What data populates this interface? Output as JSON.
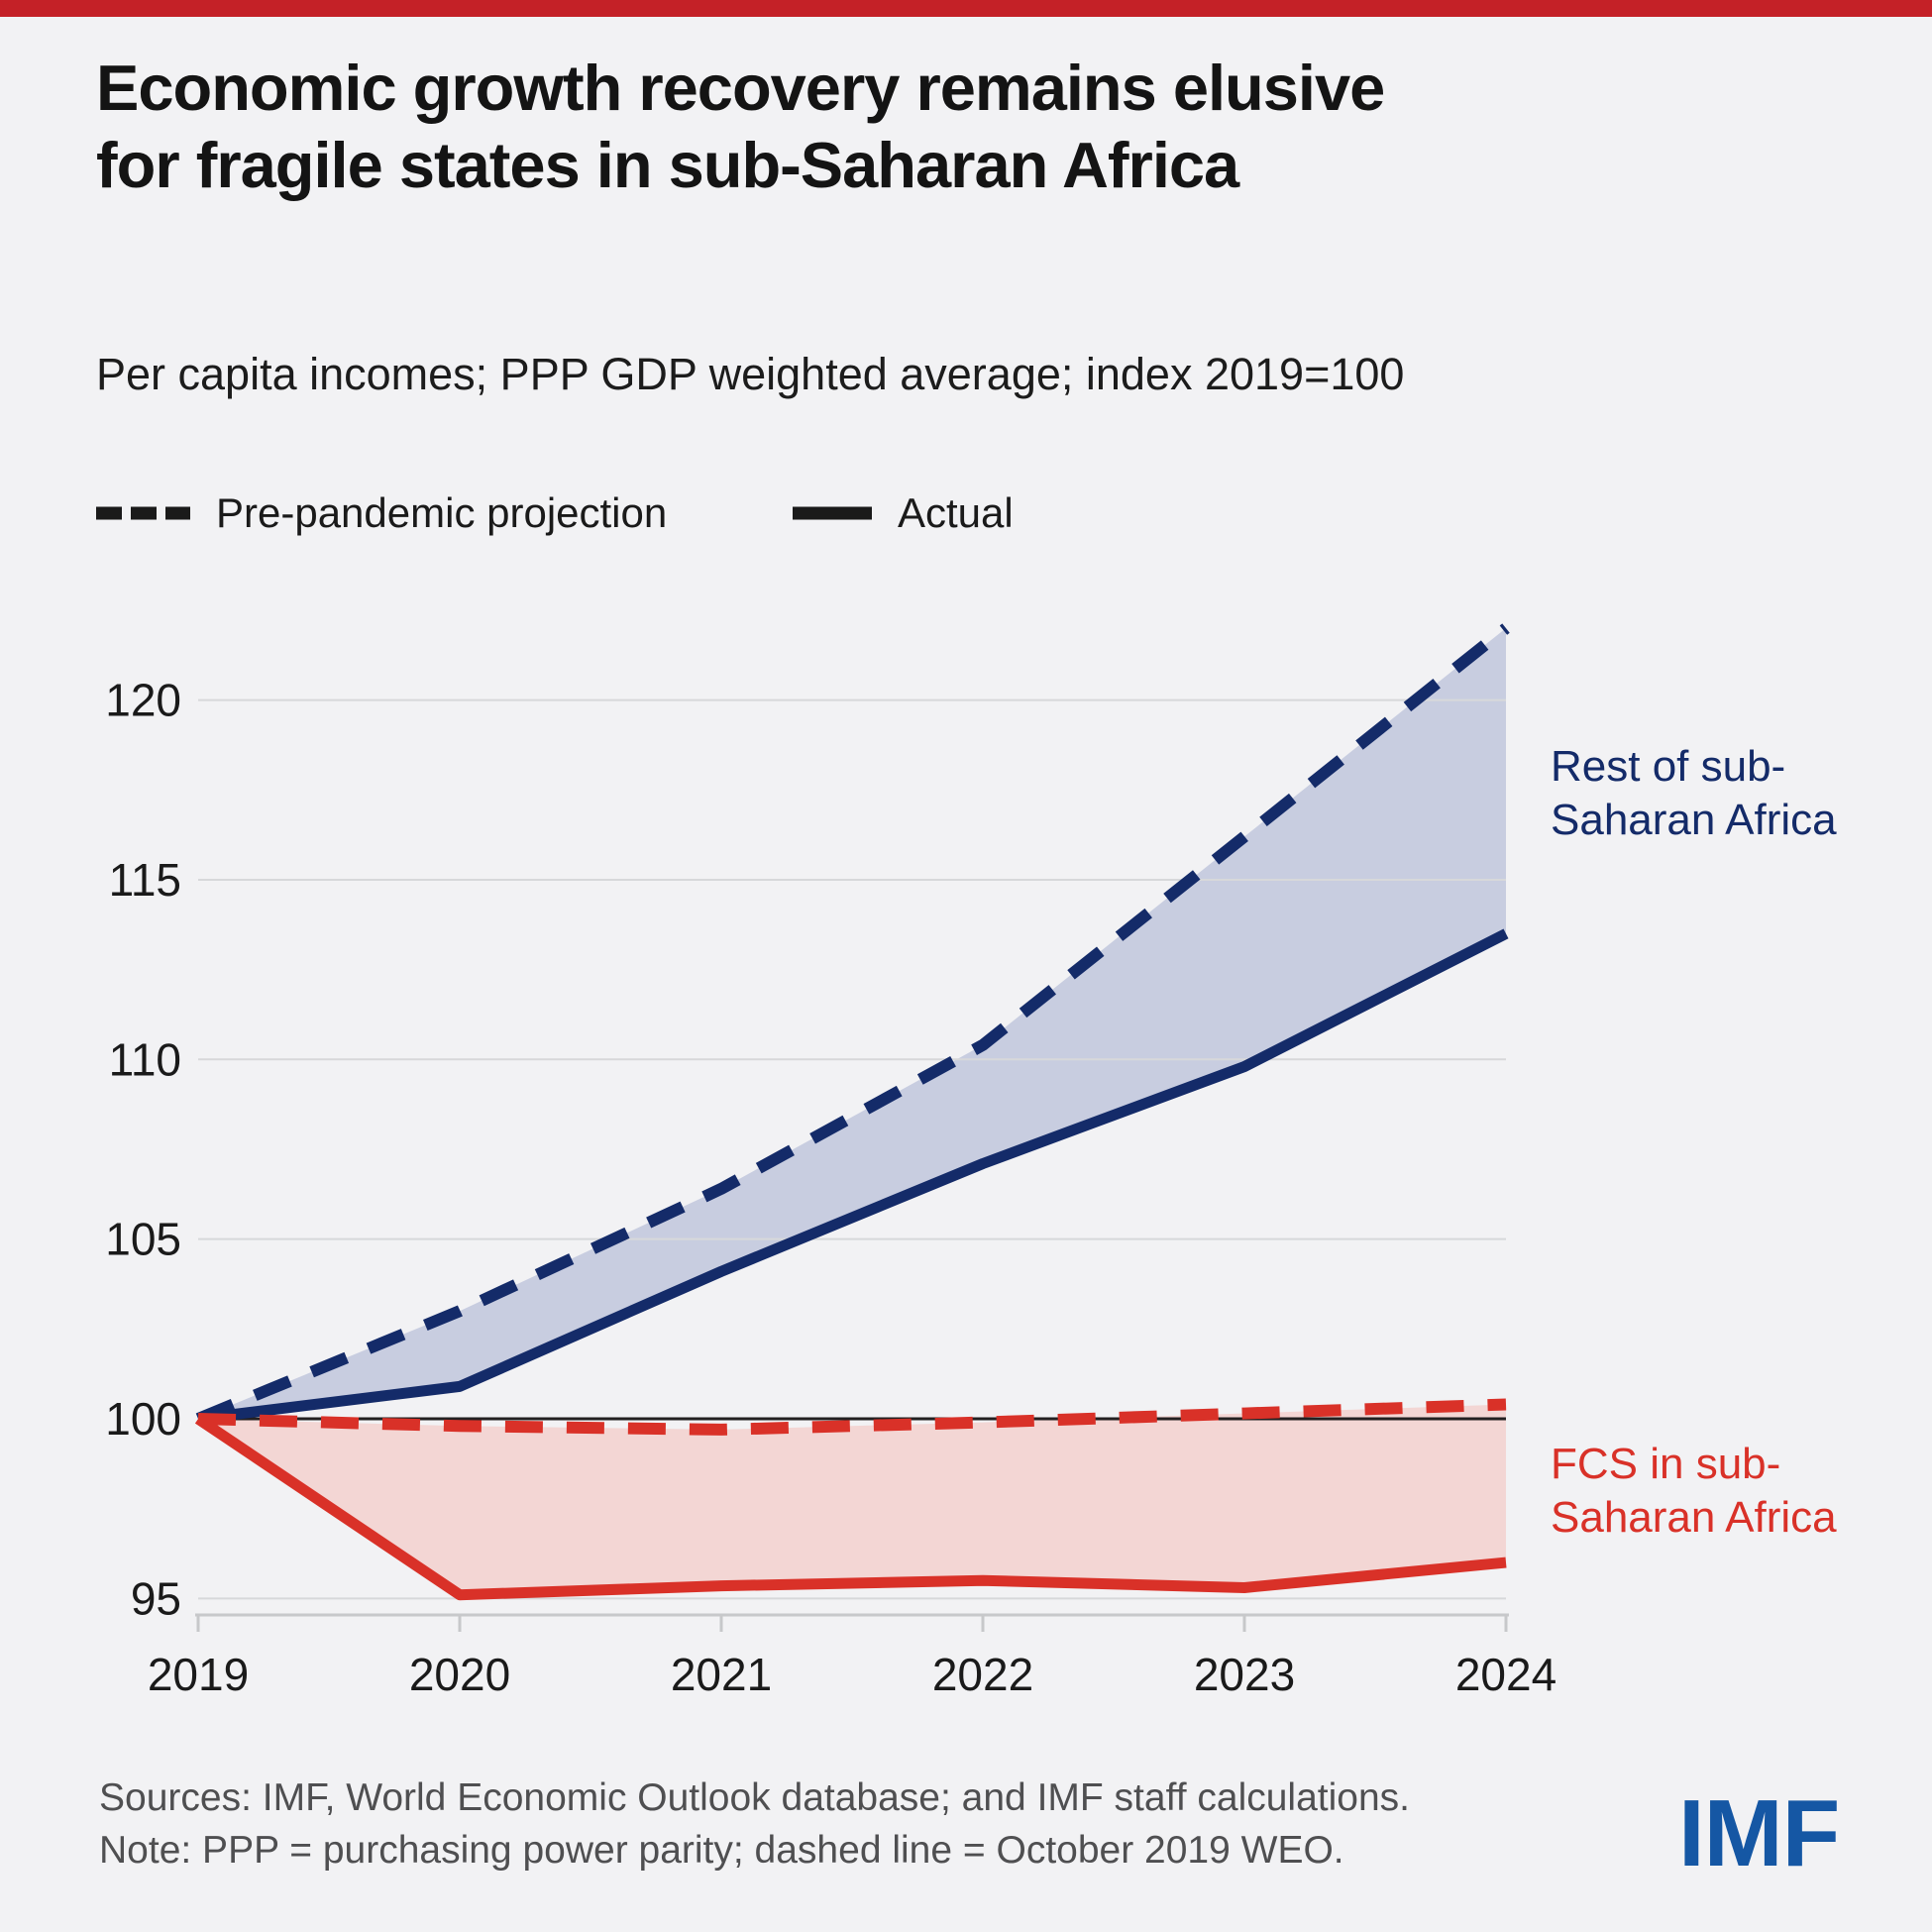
{
  "title_lines": [
    "Economic growth recovery remains elusive",
    "for fragile states in sub-Saharan Africa"
  ],
  "subtitle": "Per capita incomes; PPP GDP weighted average; index 2019=100",
  "legend": {
    "projection_label": "Pre-pandemic projection",
    "actual_label": "Actual"
  },
  "series_labels": {
    "rest": [
      "Rest of sub-",
      "Saharan Africa"
    ],
    "fcs": [
      "FCS in sub-",
      "Saharan Africa"
    ]
  },
  "footer": {
    "sources": "Sources: IMF, World Economic Outlook database; and IMF staff calculations.",
    "note": "Note: PPP = purchasing power parity; dashed line = October 2019 WEO.",
    "logo_text": "IMF"
  },
  "colors": {
    "top_bar": "#c42127",
    "navy": "#142b69",
    "red": "#d93128",
    "navy_band": "#c8cde0",
    "red_band": "#f3d6d4",
    "grid": "#d7d8da",
    "baseline": "#232021",
    "axis": "#c7c8ca",
    "tick_text": "#1a1a1a",
    "footer_text": "#4f4f51",
    "imf_logo": "#1557a4",
    "legend_swatch": "#1a1a1a"
  },
  "chart_data": {
    "type": "line",
    "title": "Per capita incomes; PPP GDP weighted average; index 2019=100",
    "xlabel": "",
    "ylabel": "",
    "x": [
      2019,
      2020,
      2021,
      2022,
      2023,
      2024
    ],
    "yticks": [
      95,
      100,
      105,
      110,
      115,
      120
    ],
    "ylim": [
      95,
      122.5
    ],
    "baseline_value": 100,
    "grid": true,
    "legend_position": "top-left",
    "legend_entries": [
      "Pre-pandemic projection",
      "Actual"
    ],
    "series": [
      {
        "name": "Rest of sub-Saharan Africa — pre-pandemic projection",
        "group": "Rest of sub-Saharan Africa",
        "style": "dashed",
        "color": "#142b69",
        "values": [
          100,
          103,
          106.4,
          110.4,
          116.2,
          122
        ]
      },
      {
        "name": "Rest of sub-Saharan Africa — actual",
        "group": "Rest of sub-Saharan Africa",
        "style": "solid",
        "color": "#142b69",
        "values": [
          100,
          100.9,
          104.1,
          107.1,
          109.8,
          113.5
        ]
      },
      {
        "name": "FCS in sub-Saharan Africa — pre-pandemic projection",
        "group": "FCS in sub-Saharan Africa",
        "style": "dashed",
        "color": "#d93128",
        "values": [
          100,
          99.8,
          99.7,
          99.9,
          100.15,
          100.4
        ]
      },
      {
        "name": "FCS in sub-Saharan Africa — actual",
        "group": "FCS in sub-Saharan Africa",
        "style": "solid",
        "color": "#d93128",
        "values": [
          100,
          95.1,
          95.35,
          95.5,
          95.3,
          96
        ]
      }
    ],
    "bands": [
      {
        "between": [
          0,
          1
        ],
        "fill": "#c8cde0"
      },
      {
        "between": [
          2,
          3
        ],
        "fill": "#f3d6d4"
      }
    ]
  }
}
